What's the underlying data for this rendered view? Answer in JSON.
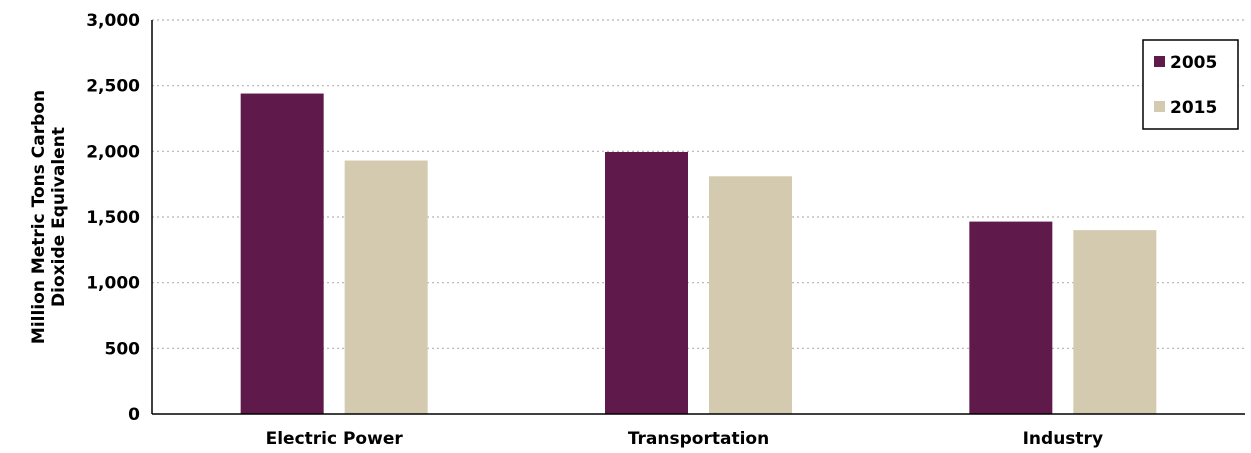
{
  "chart_data": {
    "type": "bar",
    "title": "",
    "xlabel": "",
    "ylabel_lines": [
      "Million Metric Tons Carbon",
      "Dioxide Equivalent"
    ],
    "categories": [
      "Electric Power",
      "Transportation",
      "Industry"
    ],
    "series": [
      {
        "name": "2005",
        "color": "#5f1a4b",
        "values": [
          2440,
          1995,
          1465
        ]
      },
      {
        "name": "2015",
        "color": "#d3cab0",
        "values": [
          1930,
          1810,
          1400
        ]
      }
    ],
    "ylim": [
      0,
      3000
    ],
    "yticks": [
      0,
      500,
      1000,
      1500,
      2000,
      2500,
      3000
    ],
    "ytick_labels": [
      "0",
      "500",
      "1,000",
      "1,500",
      "2,000",
      "2,500",
      "3,000"
    ],
    "grid": "horizontal-dotted",
    "legend_position": "top-right"
  }
}
